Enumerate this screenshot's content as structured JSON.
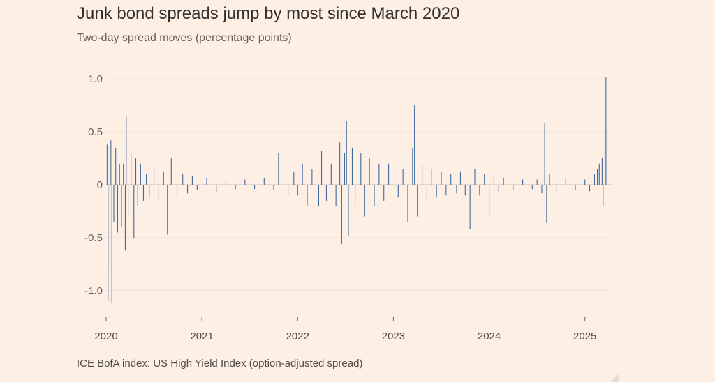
{
  "chart_data": {
    "type": "bar",
    "title": "Junk bond spreads jump by most since March 2020",
    "subtitle": "Two-day spread moves (percentage points)",
    "source": "ICE BofA index: US High Yield Index (option-adjusted spread)",
    "xlabel": "",
    "ylabel": "",
    "ylim": [
      -1.25,
      1.1
    ],
    "xlim": [
      2020.0,
      2025.25
    ],
    "yticks": [
      {
        "value": 1.0,
        "label": "1.0"
      },
      {
        "value": 0.5,
        "label": "0.5"
      },
      {
        "value": 0,
        "label": "0"
      },
      {
        "value": -0.5,
        "label": "-0.5"
      },
      {
        "value": -1.0,
        "label": "-1.0"
      }
    ],
    "xticks": [
      {
        "value": 2020,
        "label": "2020"
      },
      {
        "value": 2021,
        "label": "2021"
      },
      {
        "value": 2022,
        "label": "2022"
      },
      {
        "value": 2023,
        "label": "2023"
      },
      {
        "value": 2024,
        "label": "2024"
      },
      {
        "value": 2025,
        "label": "2025"
      }
    ],
    "series": [
      {
        "name": "Two-day spread move",
        "color": "#3f6b9c",
        "points": [
          {
            "x": 2020.01,
            "y": 0.38
          },
          {
            "x": 2020.02,
            "y": -1.1
          },
          {
            "x": 2020.04,
            "y": -0.8
          },
          {
            "x": 2020.05,
            "y": 0.42
          },
          {
            "x": 2020.06,
            "y": -1.12
          },
          {
            "x": 2020.08,
            "y": -0.35
          },
          {
            "x": 2020.1,
            "y": 0.35
          },
          {
            "x": 2020.12,
            "y": -0.45
          },
          {
            "x": 2020.14,
            "y": 0.2
          },
          {
            "x": 2020.16,
            "y": -0.4
          },
          {
            "x": 2020.18,
            "y": 0.2
          },
          {
            "x": 2020.2,
            "y": -0.62
          },
          {
            "x": 2020.21,
            "y": 0.65
          },
          {
            "x": 2020.23,
            "y": -0.3
          },
          {
            "x": 2020.26,
            "y": 0.3
          },
          {
            "x": 2020.29,
            "y": -0.5
          },
          {
            "x": 2020.31,
            "y": 0.25
          },
          {
            "x": 2020.33,
            "y": -0.2
          },
          {
            "x": 2020.36,
            "y": 0.2
          },
          {
            "x": 2020.39,
            "y": -0.15
          },
          {
            "x": 2020.42,
            "y": 0.1
          },
          {
            "x": 2020.45,
            "y": -0.12
          },
          {
            "x": 2020.5,
            "y": 0.18
          },
          {
            "x": 2020.55,
            "y": -0.15
          },
          {
            "x": 2020.6,
            "y": 0.12
          },
          {
            "x": 2020.64,
            "y": -0.47
          },
          {
            "x": 2020.68,
            "y": 0.25
          },
          {
            "x": 2020.74,
            "y": -0.12
          },
          {
            "x": 2020.8,
            "y": 0.1
          },
          {
            "x": 2020.85,
            "y": -0.08
          },
          {
            "x": 2020.9,
            "y": 0.08
          },
          {
            "x": 2020.95,
            "y": -0.05
          },
          {
            "x": 2021.05,
            "y": 0.06
          },
          {
            "x": 2021.15,
            "y": -0.07
          },
          {
            "x": 2021.25,
            "y": 0.05
          },
          {
            "x": 2021.35,
            "y": -0.04
          },
          {
            "x": 2021.45,
            "y": 0.05
          },
          {
            "x": 2021.55,
            "y": -0.04
          },
          {
            "x": 2021.65,
            "y": 0.06
          },
          {
            "x": 2021.75,
            "y": -0.05
          },
          {
            "x": 2021.8,
            "y": 0.3
          },
          {
            "x": 2021.9,
            "y": -0.1
          },
          {
            "x": 2021.96,
            "y": 0.12
          },
          {
            "x": 2022.0,
            "y": -0.1
          },
          {
            "x": 2022.05,
            "y": 0.2
          },
          {
            "x": 2022.1,
            "y": -0.2
          },
          {
            "x": 2022.15,
            "y": 0.15
          },
          {
            "x": 2022.22,
            "y": -0.2
          },
          {
            "x": 2022.25,
            "y": 0.32
          },
          {
            "x": 2022.3,
            "y": -0.15
          },
          {
            "x": 2022.35,
            "y": 0.2
          },
          {
            "x": 2022.4,
            "y": -0.2
          },
          {
            "x": 2022.44,
            "y": 0.4
          },
          {
            "x": 2022.46,
            "y": -0.56
          },
          {
            "x": 2022.49,
            "y": 0.3
          },
          {
            "x": 2022.51,
            "y": 0.6
          },
          {
            "x": 2022.53,
            "y": -0.48
          },
          {
            "x": 2022.57,
            "y": 0.35
          },
          {
            "x": 2022.6,
            "y": -0.2
          },
          {
            "x": 2022.66,
            "y": 0.3
          },
          {
            "x": 2022.7,
            "y": -0.3
          },
          {
            "x": 2022.75,
            "y": 0.25
          },
          {
            "x": 2022.8,
            "y": -0.2
          },
          {
            "x": 2022.85,
            "y": 0.2
          },
          {
            "x": 2022.9,
            "y": -0.15
          },
          {
            "x": 2022.95,
            "y": 0.2
          },
          {
            "x": 2023.05,
            "y": -0.12
          },
          {
            "x": 2023.1,
            "y": 0.15
          },
          {
            "x": 2023.15,
            "y": -0.35
          },
          {
            "x": 2023.2,
            "y": 0.35
          },
          {
            "x": 2023.22,
            "y": 0.75
          },
          {
            "x": 2023.25,
            "y": -0.3
          },
          {
            "x": 2023.3,
            "y": 0.2
          },
          {
            "x": 2023.35,
            "y": -0.15
          },
          {
            "x": 2023.4,
            "y": 0.15
          },
          {
            "x": 2023.45,
            "y": -0.12
          },
          {
            "x": 2023.5,
            "y": 0.12
          },
          {
            "x": 2023.55,
            "y": -0.1
          },
          {
            "x": 2023.6,
            "y": 0.1
          },
          {
            "x": 2023.66,
            "y": -0.08
          },
          {
            "x": 2023.7,
            "y": 0.12
          },
          {
            "x": 2023.75,
            "y": -0.1
          },
          {
            "x": 2023.8,
            "y": -0.42
          },
          {
            "x": 2023.85,
            "y": 0.15
          },
          {
            "x": 2023.9,
            "y": -0.1
          },
          {
            "x": 2023.95,
            "y": 0.1
          },
          {
            "x": 2024.0,
            "y": -0.3
          },
          {
            "x": 2024.05,
            "y": 0.08
          },
          {
            "x": 2024.1,
            "y": -0.07
          },
          {
            "x": 2024.15,
            "y": 0.06
          },
          {
            "x": 2024.25,
            "y": -0.05
          },
          {
            "x": 2024.35,
            "y": 0.05
          },
          {
            "x": 2024.45,
            "y": -0.04
          },
          {
            "x": 2024.5,
            "y": 0.05
          },
          {
            "x": 2024.55,
            "y": -0.08
          },
          {
            "x": 2024.58,
            "y": 0.58
          },
          {
            "x": 2024.6,
            "y": -0.36
          },
          {
            "x": 2024.63,
            "y": 0.1
          },
          {
            "x": 2024.7,
            "y": -0.08
          },
          {
            "x": 2024.8,
            "y": 0.06
          },
          {
            "x": 2024.9,
            "y": -0.05
          },
          {
            "x": 2025.0,
            "y": 0.05
          },
          {
            "x": 2025.05,
            "y": -0.06
          },
          {
            "x": 2025.1,
            "y": 0.1
          },
          {
            "x": 2025.13,
            "y": 0.15
          },
          {
            "x": 2025.15,
            "y": 0.2
          },
          {
            "x": 2025.18,
            "y": 0.25
          },
          {
            "x": 2025.19,
            "y": -0.2
          },
          {
            "x": 2025.21,
            "y": 0.5
          },
          {
            "x": 2025.22,
            "y": 1.02
          }
        ]
      }
    ]
  }
}
